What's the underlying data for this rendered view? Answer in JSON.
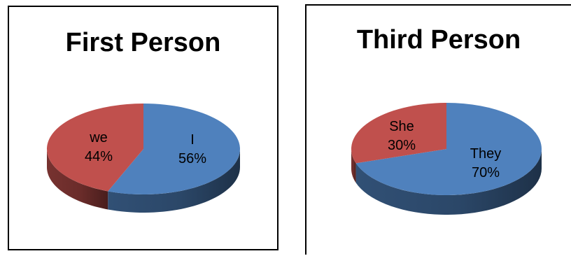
{
  "chart_data": [
    {
      "type": "pie",
      "title": "First Person",
      "style": "3d-oval",
      "slices": [
        {
          "label": "I",
          "value": 56,
          "display": "56%",
          "color": "#4f81bd"
        },
        {
          "label": "we",
          "value": 44,
          "display": "44%",
          "color": "#c0504d"
        }
      ]
    },
    {
      "type": "pie",
      "title": "Third Person",
      "style": "3d-oval",
      "slices": [
        {
          "label": "They",
          "value": 70,
          "display": "70%",
          "color": "#4f81bd"
        },
        {
          "label": "She",
          "value": 30,
          "display": "30%",
          "color": "#c0504d"
        }
      ]
    }
  ]
}
